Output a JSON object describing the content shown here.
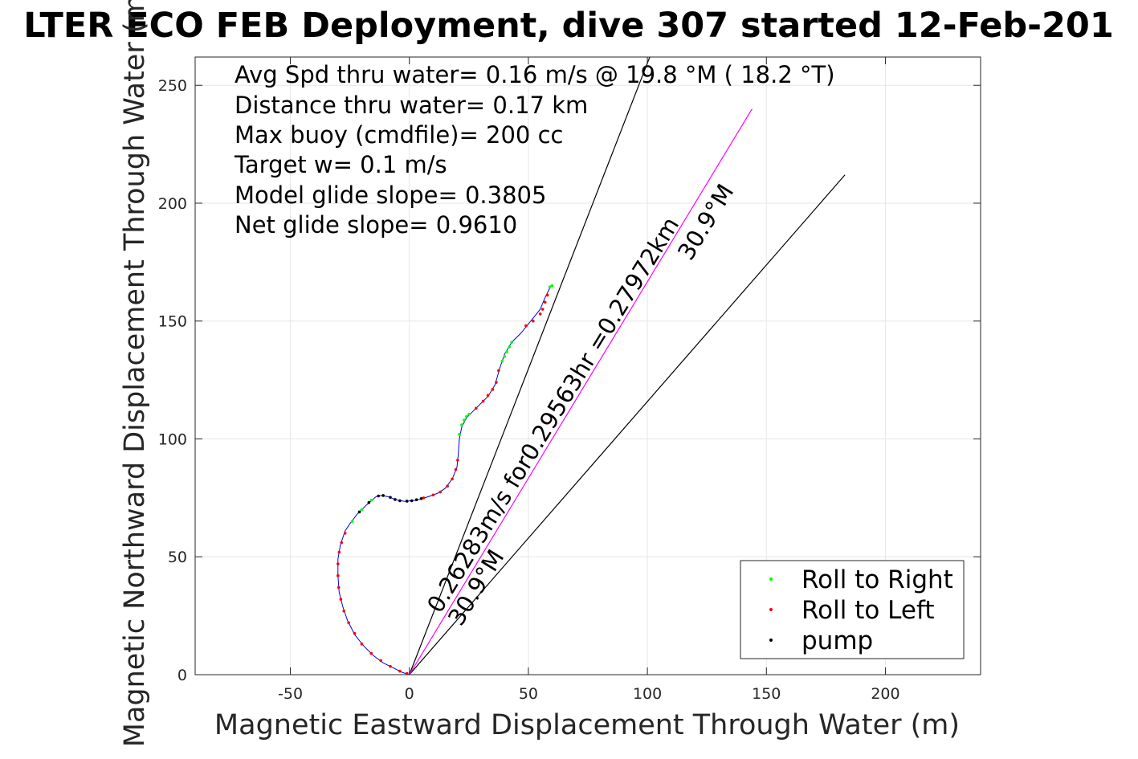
{
  "title": "LTER ECO FEB Deployment, dive 307 started 12-Feb-201",
  "stats": [
    "Avg Spd thru water=  0.16 m/s @  19.8 °M ( 18.2 °T)",
    "Distance thru water=  0.17 km",
    "Max buoy (cmdfile)= 200 cc",
    "Target w= 0.1 m/s",
    "Model glide slope= 0.3805",
    "Net glide slope= 0.9610"
  ],
  "annotations": {
    "current_speed": "0.26283m/s for0.29563hr =0.27972km",
    "current_heading_far": "30.9°M",
    "current_heading_near": "30.9°M"
  },
  "colors": {
    "track": "#0000ff",
    "roll_right": "#00ff00",
    "roll_left": "#ff0000",
    "pump": "#000000",
    "current_vector": "#ff00ff",
    "reference_lines": "#000000",
    "grid": "#e6e6e6"
  },
  "chart_data": {
    "type": "scatter",
    "xlabel": "Magnetic Eastward Displacement Through Water (m)",
    "ylabel": "Magnetic Northward Displacement Through Water (m)",
    "xlim": [
      -90,
      240
    ],
    "ylim": [
      0,
      262
    ],
    "xticks": [
      -50,
      0,
      50,
      100,
      150,
      200
    ],
    "yticks": [
      0,
      50,
      100,
      150,
      200,
      250
    ],
    "xtick_labels": [
      "-50",
      "0",
      "50",
      "100",
      "150",
      "200"
    ],
    "ytick_labels": [
      "0",
      "50",
      "100",
      "150",
      "200",
      "250"
    ],
    "grid": true,
    "legend_placement": "bottom-right",
    "series": [
      {
        "name": "Roll to Right",
        "marker": "roll_right"
      },
      {
        "name": "Roll to Left",
        "marker": "roll_left"
      },
      {
        "name": "pump",
        "marker": "pump"
      }
    ],
    "track": [
      [
        0,
        0
      ],
      [
        -3,
        1
      ],
      [
        -7,
        3
      ],
      [
        -11,
        5
      ],
      [
        -15,
        8
      ],
      [
        -19,
        12
      ],
      [
        -23,
        17
      ],
      [
        -26,
        23
      ],
      [
        -28,
        29
      ],
      [
        -29.5,
        35
      ],
      [
        -30,
        42
      ],
      [
        -30,
        49
      ],
      [
        -29,
        55
      ],
      [
        -27,
        61
      ],
      [
        -25,
        64
      ],
      [
        -22,
        68
      ],
      [
        -18,
        72
      ],
      [
        -14,
        75.5
      ],
      [
        -12,
        76
      ],
      [
        -9,
        75.5
      ],
      [
        -5,
        74
      ],
      [
        -2,
        73.5
      ],
      [
        3,
        74
      ],
      [
        8,
        75.5
      ],
      [
        12,
        77
      ],
      [
        15,
        79
      ],
      [
        18,
        83
      ],
      [
        20,
        88
      ],
      [
        20.5,
        93
      ],
      [
        21,
        100
      ],
      [
        22,
        105
      ],
      [
        24,
        109
      ],
      [
        26,
        111
      ],
      [
        30,
        115
      ],
      [
        33,
        118
      ],
      [
        36,
        123
      ],
      [
        38,
        130
      ],
      [
        40,
        136
      ],
      [
        43,
        141
      ],
      [
        47,
        145
      ],
      [
        51,
        150
      ],
      [
        55,
        155
      ],
      [
        57,
        160
      ],
      [
        59,
        164
      ],
      [
        60,
        165
      ]
    ],
    "roll_right_points": [
      [
        -20,
        70
      ],
      [
        -16,
        74
      ],
      [
        -24,
        65
      ],
      [
        21,
        102
      ],
      [
        22,
        106
      ],
      [
        23,
        108
      ],
      [
        24,
        109.5
      ],
      [
        25,
        110.5
      ],
      [
        39,
        133
      ],
      [
        40,
        135
      ],
      [
        41,
        137
      ],
      [
        42,
        139
      ],
      [
        43,
        141
      ],
      [
        59,
        164.5
      ],
      [
        60,
        165
      ]
    ],
    "roll_left_points": [
      [
        -1,
        0.5
      ],
      [
        -4,
        1.5
      ],
      [
        -8,
        3.5
      ],
      [
        -12,
        6
      ],
      [
        -16,
        9
      ],
      [
        -20,
        13
      ],
      [
        -23,
        17.5
      ],
      [
        -25.5,
        22
      ],
      [
        -27.5,
        27
      ],
      [
        -28.8,
        32
      ],
      [
        -29.7,
        37
      ],
      [
        -30,
        42
      ],
      [
        -30,
        47
      ],
      [
        -29.5,
        52
      ],
      [
        -28.5,
        56
      ],
      [
        -27,
        60
      ],
      [
        6,
        75
      ],
      [
        10,
        76.2
      ],
      [
        13,
        77.5
      ],
      [
        16,
        80
      ],
      [
        18,
        83
      ],
      [
        19.5,
        87
      ],
      [
        20.3,
        91
      ],
      [
        28,
        113
      ],
      [
        31,
        116
      ],
      [
        33,
        118.5
      ],
      [
        35,
        121
      ],
      [
        36.5,
        124
      ],
      [
        37.5,
        129
      ],
      [
        49,
        148
      ],
      [
        52,
        150
      ],
      [
        55,
        153
      ],
      [
        56,
        155
      ],
      [
        57,
        158
      ],
      [
        58,
        161
      ]
    ],
    "pump_points": [
      [
        -21,
        69
      ],
      [
        -17,
        73
      ],
      [
        -13,
        75.8
      ],
      [
        -11,
        76
      ],
      [
        -8,
        75.2
      ],
      [
        -6,
        74.3
      ],
      [
        -4,
        73.8
      ],
      [
        -1,
        73.6
      ],
      [
        1,
        73.8
      ],
      [
        3,
        74.2
      ],
      [
        5,
        74.7
      ]
    ],
    "reference_lines": [
      [
        [
          0,
          0
        ],
        [
          101,
          262
        ]
      ],
      [
        [
          0,
          0
        ],
        [
          183,
          212
        ]
      ]
    ],
    "current_vector": [
      [
        0,
        0
      ],
      [
        144,
        240
      ]
    ]
  }
}
